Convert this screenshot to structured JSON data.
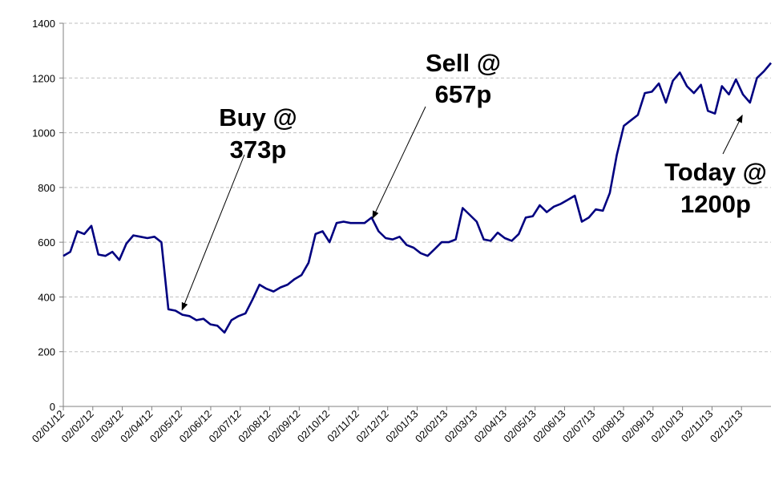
{
  "chart_data": {
    "type": "line",
    "title": "",
    "xlabel": "",
    "ylabel": "",
    "ylim": [
      0,
      1400
    ],
    "y_ticks": [
      0,
      200,
      400,
      600,
      800,
      1000,
      1200,
      1400
    ],
    "grid": true,
    "legend": "none",
    "x_tick_labels": [
      "02/01/12",
      "02/02/12",
      "02/03/12",
      "02/04/12",
      "02/05/12",
      "02/06/12",
      "02/07/12",
      "02/08/12",
      "02/09/12",
      "02/10/12",
      "02/11/12",
      "02/12/12",
      "02/01/13",
      "02/02/13",
      "02/03/13",
      "02/04/13",
      "02/05/13",
      "02/06/13",
      "02/07/13",
      "02/08/13",
      "02/09/13",
      "02/10/13",
      "02/11/13",
      "02/12/13"
    ],
    "series": [
      {
        "color": "#000080",
        "x_start": "02/01/12",
        "x_end": "end of 2013",
        "values": [
          550,
          565,
          640,
          630,
          660,
          555,
          550,
          565,
          535,
          595,
          625,
          620,
          615,
          620,
          600,
          355,
          350,
          335,
          330,
          315,
          320,
          300,
          295,
          270,
          315,
          330,
          340,
          390,
          445,
          430,
          420,
          435,
          445,
          465,
          480,
          525,
          630,
          640,
          600,
          670,
          675,
          670,
          670,
          670,
          690,
          640,
          615,
          610,
          620,
          590,
          580,
          560,
          550,
          575,
          600,
          600,
          610,
          725,
          700,
          675,
          610,
          605,
          635,
          615,
          605,
          630,
          690,
          695,
          735,
          710,
          730,
          740,
          755,
          770,
          675,
          690,
          720,
          715,
          780,
          920,
          1025,
          1045,
          1065,
          1145,
          1150,
          1180,
          1110,
          1190,
          1220,
          1170,
          1145,
          1175,
          1080,
          1070,
          1170,
          1140,
          1195,
          1140,
          1110,
          1200,
          1225,
          1255
        ]
      }
    ],
    "annotations": [
      {
        "line1": "Buy @",
        "line2": "373p",
        "points_to": "02/05/12"
      },
      {
        "line1": "Sell @",
        "line2": "657p",
        "points_to": "02/11/12"
      },
      {
        "line1": "Today @",
        "line2": "1200p",
        "points_to": "02/12/13"
      }
    ]
  }
}
